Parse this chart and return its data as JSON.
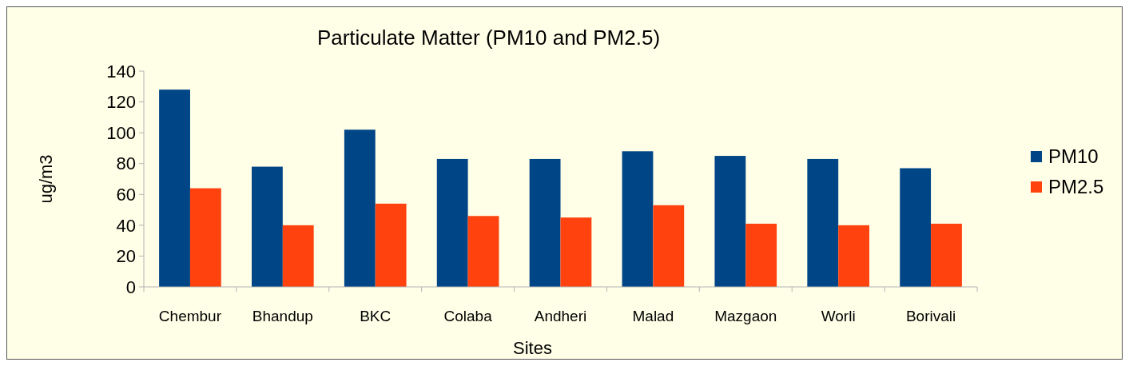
{
  "chart_data": {
    "type": "bar",
    "title": "Particulate Matter (PM10 and PM2.5)",
    "xlabel": "Sites",
    "ylabel": "ug/m3",
    "categories": [
      "Chembur",
      "Bhandup",
      "BKC",
      "Colaba",
      "Andheri",
      "Malad",
      "Mazgaon",
      "Worli",
      "Borivali"
    ],
    "series": [
      {
        "name": "PM10",
        "color": "#004586",
        "values": [
          128,
          78,
          102,
          83,
          83,
          88,
          85,
          83,
          77
        ]
      },
      {
        "name": "PM2.5",
        "color": "#ff420e",
        "values": [
          64,
          40,
          54,
          46,
          45,
          53,
          41,
          40,
          41
        ]
      }
    ],
    "ylim": [
      0,
      140
    ],
    "yticks": [
      0,
      20,
      40,
      60,
      80,
      100,
      120,
      140
    ],
    "legend": "right"
  }
}
